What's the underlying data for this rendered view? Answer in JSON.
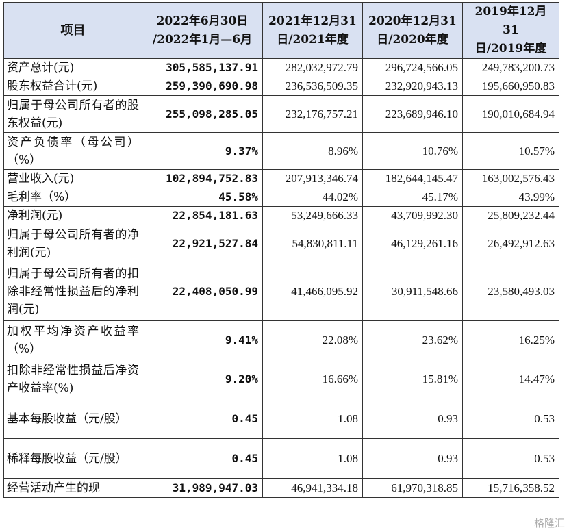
{
  "header": {
    "item": "项目",
    "col1_line1": "2022年6月30日",
    "col1_line2": "/2022年1月—6月",
    "col2_line1": "2021年12月31",
    "col2_line2": "日/2021年度",
    "col3_line1": "2020年12月31",
    "col3_line2": "日/2020年度",
    "col4_line1": "2019年12月31",
    "col4_line2": "日/2019年度"
  },
  "rows": [
    {
      "label": "资产总计(元)",
      "v2022": "305,585,137.91",
      "v2021": "282,032,972.79",
      "v2020": "296,724,566.05",
      "v2019": "249,783,200.73"
    },
    {
      "label": "股东权益合计(元)",
      "v2022": "259,390,690.98",
      "v2021": "236,536,509.35",
      "v2020": "232,920,943.13",
      "v2019": "195,660,950.83"
    },
    {
      "label": "归属于母公司所有者的股东权益(元)",
      "v2022": "255,098,285.05",
      "v2021": "232,176,757.21",
      "v2020": "223,689,946.10",
      "v2019": "190,010,684.94"
    },
    {
      "label": "资产负债率（母公司）（%）",
      "v2022": "9.37%",
      "v2021": "8.96%",
      "v2020": "10.76%",
      "v2019": "10.57%"
    },
    {
      "label": "营业收入(元)",
      "v2022": "102,894,752.83",
      "v2021": "207,913,346.74",
      "v2020": "182,644,145.47",
      "v2019": "163,002,576.43"
    },
    {
      "label": "毛利率（%）",
      "v2022": "45.58%",
      "v2021": "44.02%",
      "v2020": "45.17%",
      "v2019": "43.99%"
    },
    {
      "label": "净利润(元)",
      "v2022": "22,854,181.63",
      "v2021": "53,249,666.33",
      "v2020": "43,709,992.30",
      "v2019": "25,809,232.44"
    },
    {
      "label": "归属于母公司所有者的净利润(元)",
      "v2022": "22,921,527.84",
      "v2021": "54,830,811.11",
      "v2020": "46,129,261.16",
      "v2019": "26,492,912.63"
    },
    {
      "label": "归属于母公司所有者的扣除非经常性损益后的净利润(元)",
      "v2022": "22,408,050.99",
      "v2021": "41,466,095.92",
      "v2020": "30,911,548.66",
      "v2019": "23,580,493.03"
    },
    {
      "label": "加权平均净资产收益率（%）",
      "v2022": "9.41%",
      "v2021": "22.08%",
      "v2020": "23.62%",
      "v2019": "16.25%"
    },
    {
      "label": "扣除非经常性损益后净资产收益率(%)",
      "v2022": "9.20%",
      "v2021": "16.66%",
      "v2020": "15.81%",
      "v2019": "14.47%"
    },
    {
      "label": "基本每股收益（元/股）",
      "v2022": "0.45",
      "v2021": "1.08",
      "v2020": "0.93",
      "v2019": "0.53"
    },
    {
      "label": "稀释每股收益（元/股）",
      "v2022": "0.45",
      "v2021": "1.08",
      "v2020": "0.93",
      "v2019": "0.53"
    },
    {
      "label": "经营活动产生的现",
      "v2022": "31,989,947.03",
      "v2021": "46,941,334.18",
      "v2020": "61,970,318.85",
      "v2019": "15,716,358.52"
    }
  ],
  "watermark": "格隆汇"
}
